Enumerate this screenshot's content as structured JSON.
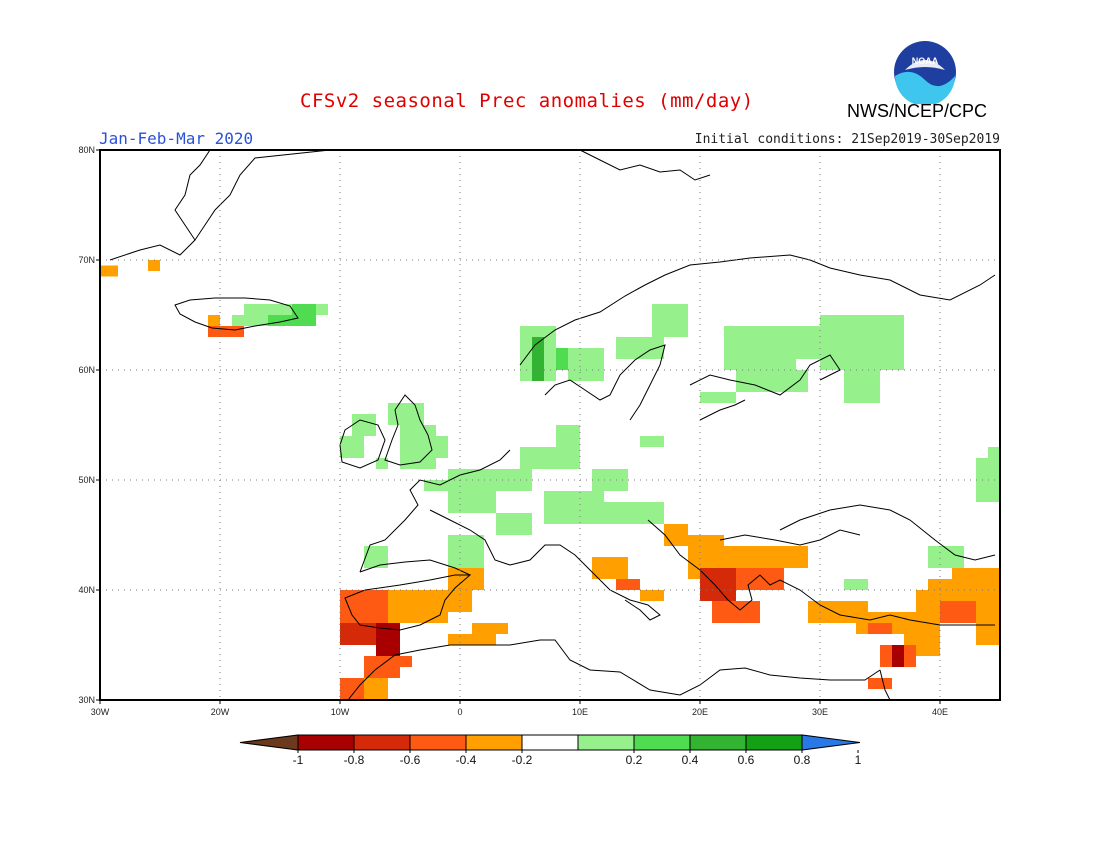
{
  "header": {
    "title": "CFSv2 seasonal Prec anomalies (mm/day)",
    "season": "Jan-Feb-Mar 2020",
    "initial_conditions": "Initial conditions: 21Sep2019-30Sep2019",
    "agency": "NWS/NCEP/CPC",
    "logo_text": "NOAA"
  },
  "map": {
    "projection": "lat-lon",
    "lon_range": [
      -30,
      45
    ],
    "lat_range": [
      30,
      80
    ],
    "grid": true,
    "lon_ticks": [
      "30W",
      "20W",
      "10W",
      "0",
      "10E",
      "20E",
      "30E",
      "40E"
    ],
    "lon_tick_values": [
      -30,
      -20,
      -10,
      0,
      10,
      20,
      30,
      40
    ],
    "lat_ticks": [
      "30N",
      "40N",
      "50N",
      "60N",
      "70N",
      "80N"
    ],
    "lat_tick_values": [
      30,
      40,
      50,
      60,
      70,
      80
    ]
  },
  "colorbar": {
    "labels": [
      "-1",
      "-0.8",
      "-0.6",
      "-0.4",
      "-0.2",
      "0.2",
      "0.4",
      "0.6",
      "0.8",
      "1"
    ],
    "colors": [
      "#6b3a1e",
      "#a80000",
      "#d42a0a",
      "#ff5a14",
      "#ffa000",
      "#ffffff",
      "#96f08c",
      "#50dc50",
      "#32b432",
      "#14a014",
      "#2878e6"
    ]
  },
  "chart_data": {
    "type": "heatmap",
    "title": "CFSv2 seasonal Prec anomalies (mm/day)",
    "subtitle": "Jan-Feb-Mar 2020",
    "units": "mm/day",
    "xlim": [
      -30,
      45
    ],
    "ylim": [
      30,
      80
    ],
    "cells": [
      {
        "lon": -30,
        "lat": 68.5,
        "w": 1.5,
        "h": 1,
        "value": -0.3
      },
      {
        "lon": -26,
        "lat": 69,
        "w": 1,
        "h": 1,
        "value": -0.3
      },
      {
        "lon": -21,
        "lat": 64,
        "w": 1,
        "h": 1,
        "value": -0.3
      },
      {
        "lon": -21,
        "lat": 63,
        "w": 3,
        "h": 1,
        "value": -0.5
      },
      {
        "lon": -19,
        "lat": 64,
        "w": 3,
        "h": 1,
        "value": 0.3
      },
      {
        "lon": -18,
        "lat": 65,
        "w": 7,
        "h": 1,
        "value": 0.3
      },
      {
        "lon": -16,
        "lat": 64,
        "w": 4,
        "h": 1,
        "value": 0.5
      },
      {
        "lon": -14,
        "lat": 64,
        "w": 2,
        "h": 2,
        "value": 0.5
      },
      {
        "lon": 5,
        "lat": 59,
        "w": 3,
        "h": 5,
        "value": 0.3
      },
      {
        "lon": 6,
        "lat": 59,
        "w": 1,
        "h": 4,
        "value": 0.7
      },
      {
        "lon": 8,
        "lat": 60,
        "w": 1,
        "h": 2,
        "value": 0.5
      },
      {
        "lon": 9,
        "lat": 59,
        "w": 3,
        "h": 3,
        "value": 0.3
      },
      {
        "lon": 13,
        "lat": 61,
        "w": 4,
        "h": 2,
        "value": 0.3
      },
      {
        "lon": 16,
        "lat": 63,
        "w": 3,
        "h": 3,
        "value": 0.3
      },
      {
        "lon": 22,
        "lat": 60,
        "w": 6,
        "h": 4,
        "value": 0.3
      },
      {
        "lon": 26,
        "lat": 61,
        "w": 9,
        "h": 3,
        "value": 0.3
      },
      {
        "lon": 30,
        "lat": 60,
        "w": 7,
        "h": 5,
        "value": 0.3
      },
      {
        "lon": 32,
        "lat": 57,
        "w": 3,
        "h": 3,
        "value": 0.3
      },
      {
        "lon": 23,
        "lat": 58,
        "w": 6,
        "h": 2,
        "value": 0.3
      },
      {
        "lon": 20,
        "lat": 57,
        "w": 3,
        "h": 1,
        "value": 0.3
      },
      {
        "lon": -10,
        "lat": 52,
        "w": 2,
        "h": 2,
        "value": 0.3
      },
      {
        "lon": -9,
        "lat": 54,
        "w": 2,
        "h": 2,
        "value": 0.3
      },
      {
        "lon": -7,
        "lat": 51,
        "w": 1,
        "h": 1,
        "value": 0.3
      },
      {
        "lon": -6,
        "lat": 55,
        "w": 3,
        "h": 2,
        "value": 0.3
      },
      {
        "lon": -5,
        "lat": 51,
        "w": 3,
        "h": 4,
        "value": 0.3
      },
      {
        "lon": -3,
        "lat": 52,
        "w": 2,
        "h": 2,
        "value": 0.3
      },
      {
        "lon": -3,
        "lat": 49,
        "w": 2,
        "h": 1,
        "value": 0.3
      },
      {
        "lon": -1,
        "lat": 47,
        "w": 4,
        "h": 4,
        "value": 0.3
      },
      {
        "lon": 2,
        "lat": 49,
        "w": 4,
        "h": 2,
        "value": 0.3
      },
      {
        "lon": 3,
        "lat": 45,
        "w": 3,
        "h": 2,
        "value": 0.3
      },
      {
        "lon": 5,
        "lat": 51,
        "w": 5,
        "h": 2,
        "value": 0.3
      },
      {
        "lon": 8,
        "lat": 53,
        "w": 2,
        "h": 2,
        "value": 0.3
      },
      {
        "lon": 7,
        "lat": 46,
        "w": 5,
        "h": 3,
        "value": 0.3
      },
      {
        "lon": 10,
        "lat": 46,
        "w": 5,
        "h": 2,
        "value": 0.3
      },
      {
        "lon": 11,
        "lat": 49,
        "w": 3,
        "h": 2,
        "value": 0.3
      },
      {
        "lon": 15,
        "lat": 46,
        "w": 2,
        "h": 2,
        "value": 0.3
      },
      {
        "lon": -1,
        "lat": 42,
        "w": 3,
        "h": 3,
        "value": 0.3
      },
      {
        "lon": -8,
        "lat": 42,
        "w": 2,
        "h": 2,
        "value": 0.3
      },
      {
        "lon": 15,
        "lat": 53,
        "w": 2,
        "h": 1,
        "value": 0.3
      },
      {
        "lon": 39,
        "lat": 42,
        "w": 3,
        "h": 2,
        "value": 0.3
      },
      {
        "lon": 43,
        "lat": 48,
        "w": 2,
        "h": 4,
        "value": 0.3
      },
      {
        "lon": 44,
        "lat": 51,
        "w": 1,
        "h": 2,
        "value": 0.3
      },
      {
        "lon": 32,
        "lat": 40,
        "w": 2,
        "h": 1,
        "value": 0.3
      },
      {
        "lon": -10,
        "lat": 37,
        "w": 4,
        "h": 3,
        "value": -0.5
      },
      {
        "lon": -6,
        "lat": 37,
        "w": 5,
        "h": 3,
        "value": -0.3
      },
      {
        "lon": -6,
        "lat": 39,
        "w": 3,
        "h": 1,
        "value": -0.3
      },
      {
        "lon": -1,
        "lat": 38,
        "w": 2,
        "h": 2,
        "value": -0.3
      },
      {
        "lon": -1,
        "lat": 40,
        "w": 3,
        "h": 2,
        "value": -0.3
      },
      {
        "lon": -10,
        "lat": 35,
        "w": 3,
        "h": 2,
        "value": -0.7
      },
      {
        "lon": -7,
        "lat": 34,
        "w": 2,
        "h": 3,
        "value": -0.9
      },
      {
        "lon": -6,
        "lat": 33,
        "w": 2,
        "h": 1,
        "value": -0.5
      },
      {
        "lon": -8,
        "lat": 32,
        "w": 3,
        "h": 2,
        "value": -0.5
      },
      {
        "lon": -10,
        "lat": 31,
        "w": 3,
        "h": 1,
        "value": -0.3
      },
      {
        "lon": -8,
        "lat": 30,
        "w": 2,
        "h": 2,
        "value": -0.3
      },
      {
        "lon": -10,
        "lat": 30,
        "w": 2,
        "h": 2,
        "value": -0.5
      },
      {
        "lon": -1,
        "lat": 35,
        "w": 4,
        "h": 1,
        "value": -0.3
      },
      {
        "lon": 1,
        "lat": 36,
        "w": 3,
        "h": 1,
        "value": -0.3
      },
      {
        "lon": 11,
        "lat": 41,
        "w": 3,
        "h": 2,
        "value": -0.3
      },
      {
        "lon": 13,
        "lat": 40,
        "w": 2,
        "h": 1,
        "value": -0.5
      },
      {
        "lon": 15,
        "lat": 39,
        "w": 2,
        "h": 1,
        "value": -0.3
      },
      {
        "lon": 17,
        "lat": 44,
        "w": 2,
        "h": 2,
        "value": -0.3
      },
      {
        "lon": 19,
        "lat": 41,
        "w": 3,
        "h": 4,
        "value": -0.3
      },
      {
        "lon": 20,
        "lat": 39,
        "w": 3,
        "h": 3,
        "value": -0.7
      },
      {
        "lon": 21,
        "lat": 37,
        "w": 4,
        "h": 2,
        "value": -0.5
      },
      {
        "lon": 23,
        "lat": 40,
        "w": 4,
        "h": 2,
        "value": -0.5
      },
      {
        "lon": 22,
        "lat": 42,
        "w": 6,
        "h": 2,
        "value": -0.3
      },
      {
        "lon": 26,
        "lat": 42,
        "w": 3,
        "h": 2,
        "value": -0.3
      },
      {
        "lon": 29,
        "lat": 37,
        "w": 5,
        "h": 2,
        "value": -0.3
      },
      {
        "lon": 33,
        "lat": 36,
        "w": 6,
        "h": 2,
        "value": -0.3
      },
      {
        "lon": 34,
        "lat": 36,
        "w": 2,
        "h": 1,
        "value": -0.5
      },
      {
        "lon": 38,
        "lat": 37,
        "w": 7,
        "h": 3,
        "value": -0.3
      },
      {
        "lon": 40,
        "lat": 37,
        "w": 3,
        "h": 2,
        "value": -0.5
      },
      {
        "lon": 39,
        "lat": 39,
        "w": 3,
        "h": 2,
        "value": -0.3
      },
      {
        "lon": 41,
        "lat": 40,
        "w": 4,
        "h": 2,
        "value": -0.3
      },
      {
        "lon": 42,
        "lat": 41,
        "w": 2,
        "h": 1,
        "value": -0.3
      },
      {
        "lon": 37,
        "lat": 34,
        "w": 3,
        "h": 3,
        "value": -0.3
      },
      {
        "lon": 35,
        "lat": 33,
        "w": 3,
        "h": 2,
        "value": -0.5
      },
      {
        "lon": 36,
        "lat": 33,
        "w": 1,
        "h": 2,
        "value": -0.9
      },
      {
        "lon": 34,
        "lat": 31,
        "w": 2,
        "h": 1,
        "value": -0.5
      },
      {
        "lon": 43,
        "lat": 35,
        "w": 2,
        "h": 2,
        "value": -0.3
      }
    ]
  }
}
